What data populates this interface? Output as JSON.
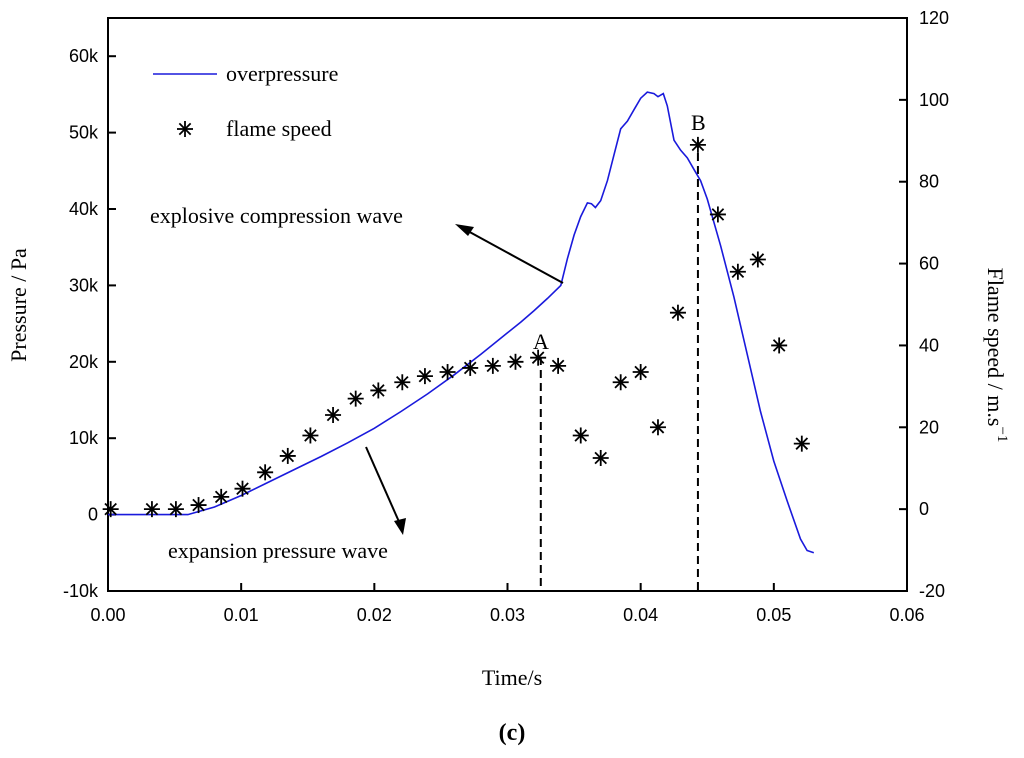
{
  "chart_data": {
    "type": "line+scatter",
    "panel_label": "c",
    "xlabel": "Time/s",
    "ylabel_left": "Pressure / Pa",
    "ylabel_right_main": "Flame speed / m.s",
    "ylabel_right_sup": "−1",
    "xlim": [
      0,
      0.06
    ],
    "ylim_left": [
      -10000,
      65000
    ],
    "ylim_right": [
      -20,
      120
    ],
    "x_ticks": [
      0,
      0.01,
      0.02,
      0.03,
      0.04,
      0.05,
      0.06
    ],
    "x_tick_labels": [
      "0.00",
      "0.01",
      "0.02",
      "0.03",
      "0.04",
      "0.05",
      "0.06"
    ],
    "y_left_ticks": [
      -10000,
      0,
      10000,
      20000,
      30000,
      40000,
      50000,
      60000
    ],
    "y_left_tick_labels": [
      "-10k",
      "0",
      "10k",
      "20k",
      "30k",
      "40k",
      "50k",
      "60k"
    ],
    "y_right_ticks": [
      -20,
      0,
      20,
      40,
      60,
      80,
      100,
      120
    ],
    "y_right_tick_labels": [
      "-20",
      "0",
      "20",
      "40",
      "60",
      "80",
      "100",
      "120"
    ],
    "legend": {
      "placement": "top-left",
      "entries": [
        {
          "label": "overpressure",
          "style": "line",
          "color": "#1a1adc"
        },
        {
          "label": "flame speed",
          "style": "star-marker",
          "color": "#000000"
        }
      ]
    },
    "series": [
      {
        "name": "overpressure",
        "axis": "left",
        "color": "#1a1adc",
        "x": [
          0,
          0.004,
          0.006,
          0.008,
          0.01,
          0.012,
          0.014,
          0.016,
          0.018,
          0.02,
          0.022,
          0.024,
          0.026,
          0.028,
          0.03,
          0.031,
          0.032,
          0.033,
          0.034,
          0.0345,
          0.035,
          0.0355,
          0.036,
          0.0363,
          0.0366,
          0.037,
          0.0375,
          0.038,
          0.0385,
          0.039,
          0.0395,
          0.04,
          0.0405,
          0.041,
          0.0413,
          0.0417,
          0.042,
          0.0425,
          0.043,
          0.0435,
          0.044,
          0.0445,
          0.045,
          0.046,
          0.047,
          0.048,
          0.049,
          0.05,
          0.051,
          0.052,
          0.0525,
          0.053
        ],
        "y": [
          0,
          0,
          0,
          1000,
          2500,
          4200,
          5900,
          7600,
          9400,
          11300,
          13500,
          15800,
          18300,
          21000,
          23800,
          25200,
          26700,
          28300,
          30000,
          33500,
          36600,
          39000,
          40800,
          40700,
          40200,
          41100,
          43700,
          47100,
          50500,
          51500,
          53000,
          54500,
          55300,
          55100,
          54700,
          55100,
          53500,
          49000,
          47700,
          46700,
          45200,
          43700,
          41300,
          35200,
          28500,
          21000,
          13500,
          7000,
          1800,
          -3200,
          -4700,
          -5000
        ]
      },
      {
        "name": "flame speed",
        "axis": "right",
        "color": "#000000",
        "x": [
          0.0002,
          0.0033,
          0.0051,
          0.0068,
          0.0085,
          0.0101,
          0.0118,
          0.0135,
          0.0152,
          0.0169,
          0.0186,
          0.0203,
          0.0221,
          0.0238,
          0.0255,
          0.0272,
          0.0289,
          0.0306,
          0.0323,
          0.0338,
          0.0355,
          0.037,
          0.0385,
          0.04,
          0.0413,
          0.0428,
          0.0443,
          0.0458,
          0.0473,
          0.0488,
          0.0504,
          0.0521
        ],
        "y": [
          0,
          0,
          0,
          1,
          3,
          5,
          9,
          13,
          18,
          23,
          27,
          29,
          31,
          32.5,
          33.5,
          34.5,
          35,
          36,
          37,
          35,
          18,
          12.5,
          31,
          33.5,
          20,
          48,
          89,
          72,
          58,
          61,
          40,
          16
        ]
      }
    ],
    "annotations": [
      {
        "text": "explosive compression wave",
        "arrow_to_series": "overpressure"
      },
      {
        "text": "expansion pressure wave",
        "arrow_from_series": "overpressure"
      },
      {
        "text": "A",
        "x": 0.0325
      },
      {
        "text": "B",
        "x": 0.0443
      }
    ]
  }
}
